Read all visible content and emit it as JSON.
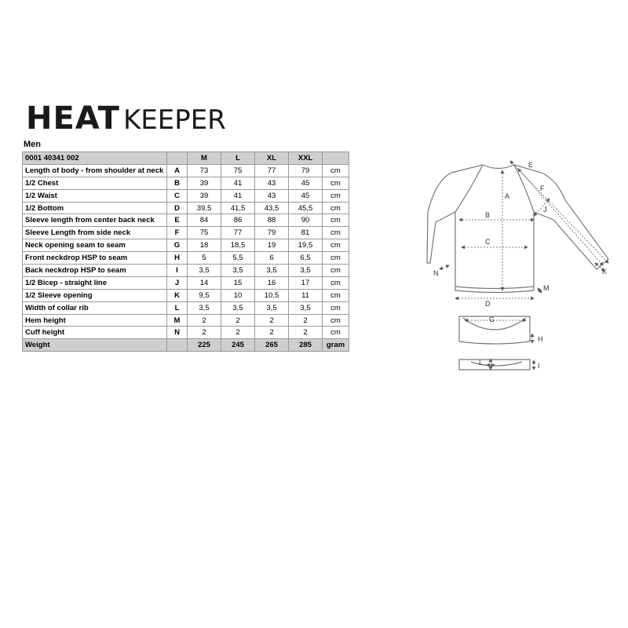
{
  "brand": {
    "word1": "HEAT",
    "word2": "KEEPER"
  },
  "section": "Men",
  "table": {
    "header": [
      "0001 40341 002",
      "M",
      "L",
      "XL",
      "XXL"
    ],
    "rows": [
      [
        "Length of body - from shoulder at neck",
        "A",
        "73",
        "75",
        "77",
        "79",
        "cm"
      ],
      [
        "1/2 Chest",
        "B",
        "39",
        "41",
        "43",
        "45",
        "cm"
      ],
      [
        "1/2 Waist",
        "C",
        "39",
        "41",
        "43",
        "45",
        "cm"
      ],
      [
        "1/2 Bottom",
        "D",
        "39,5",
        "41,5",
        "43,5",
        "45,5",
        "cm"
      ],
      [
        "Sleeve length from center back neck",
        "E",
        "84",
        "86",
        "88",
        "90",
        "cm"
      ],
      [
        "Sleeve Length from side neck",
        "F",
        "75",
        "77",
        "79",
        "81",
        "cm"
      ],
      [
        "Neck opening seam to seam",
        "G",
        "18",
        "18,5",
        "19",
        "19,5",
        "cm"
      ],
      [
        "Front neckdrop HSP to seam",
        "H",
        "5",
        "5,5",
        "6",
        "6,5",
        "cm"
      ],
      [
        "Back neckdrop HSP to seam",
        "I",
        "3,5",
        "3,5",
        "3,5",
        "3,5",
        "cm"
      ],
      [
        "1/2 Bicep - straight line",
        "J",
        "14",
        "15",
        "16",
        "17",
        "cm"
      ],
      [
        "1/2 Sleeve opening",
        "K",
        "9,5",
        "10",
        "10,5",
        "11",
        "cm"
      ],
      [
        "Width of collar rib",
        "L",
        "3,5",
        "3,5",
        "3,5",
        "3,5",
        "cm"
      ],
      [
        "Hem height",
        "M",
        "2",
        "2",
        "2",
        "2",
        "cm"
      ],
      [
        "Cuff height",
        "N",
        "2",
        "2",
        "2",
        "2",
        "cm"
      ],
      [
        "Weight",
        "",
        "225",
        "245",
        "265",
        "285",
        "gram"
      ]
    ]
  },
  "diagram": {
    "labels": [
      "E",
      "F",
      "A",
      "J",
      "B",
      "C",
      "N",
      "K",
      "M",
      "D",
      "G",
      "H",
      "L",
      "I"
    ]
  }
}
